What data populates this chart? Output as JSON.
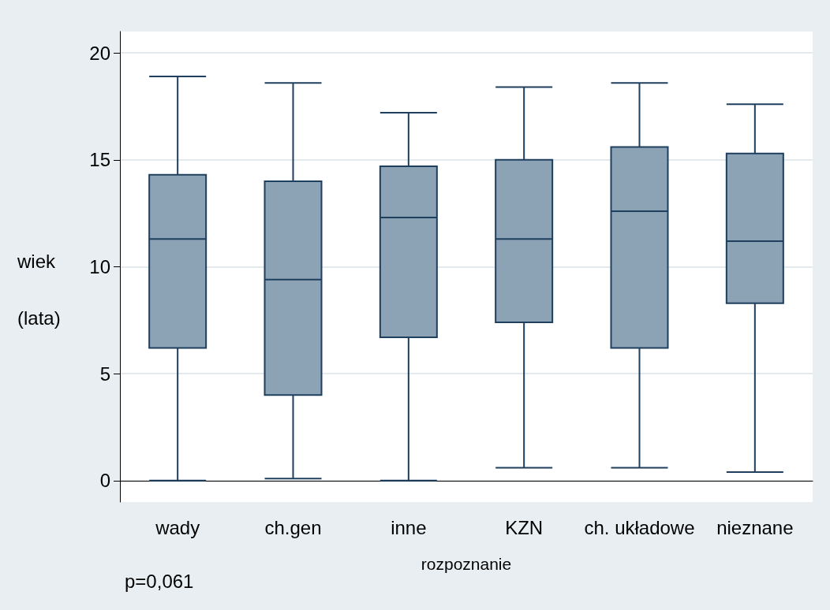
{
  "chart_data": {
    "type": "box",
    "xlabel": "rozpoznanie",
    "ylabel": "wiek\n(lata)",
    "annotations": [
      "p=0,061"
    ],
    "categories": [
      "wady",
      "ch.gen",
      "inne",
      "KZN",
      "ch. układowe",
      "nieznane"
    ],
    "color": "#8ca2b5",
    "boxes": [
      {
        "low": 0,
        "q1": 6.2,
        "median": 11.3,
        "q3": 14.3,
        "high": 18.9
      },
      {
        "low": 0.1,
        "q1": 4.0,
        "median": 9.4,
        "q3": 14.0,
        "high": 18.6
      },
      {
        "low": 0,
        "q1": 6.7,
        "median": 12.3,
        "q3": 14.7,
        "high": 17.2
      },
      {
        "low": 0.6,
        "q1": 7.4,
        "median": 11.3,
        "q3": 15.0,
        "high": 18.4
      },
      {
        "low": 0.6,
        "q1": 6.2,
        "median": 12.6,
        "q3": 15.6,
        "high": 18.6
      },
      {
        "low": 0.4,
        "q1": 8.3,
        "median": 11.2,
        "q3": 15.3,
        "high": 17.6
      }
    ],
    "ylim": [
      -1,
      21
    ],
    "yticks": [
      0,
      5,
      10,
      15,
      20
    ],
    "grid": "y"
  }
}
